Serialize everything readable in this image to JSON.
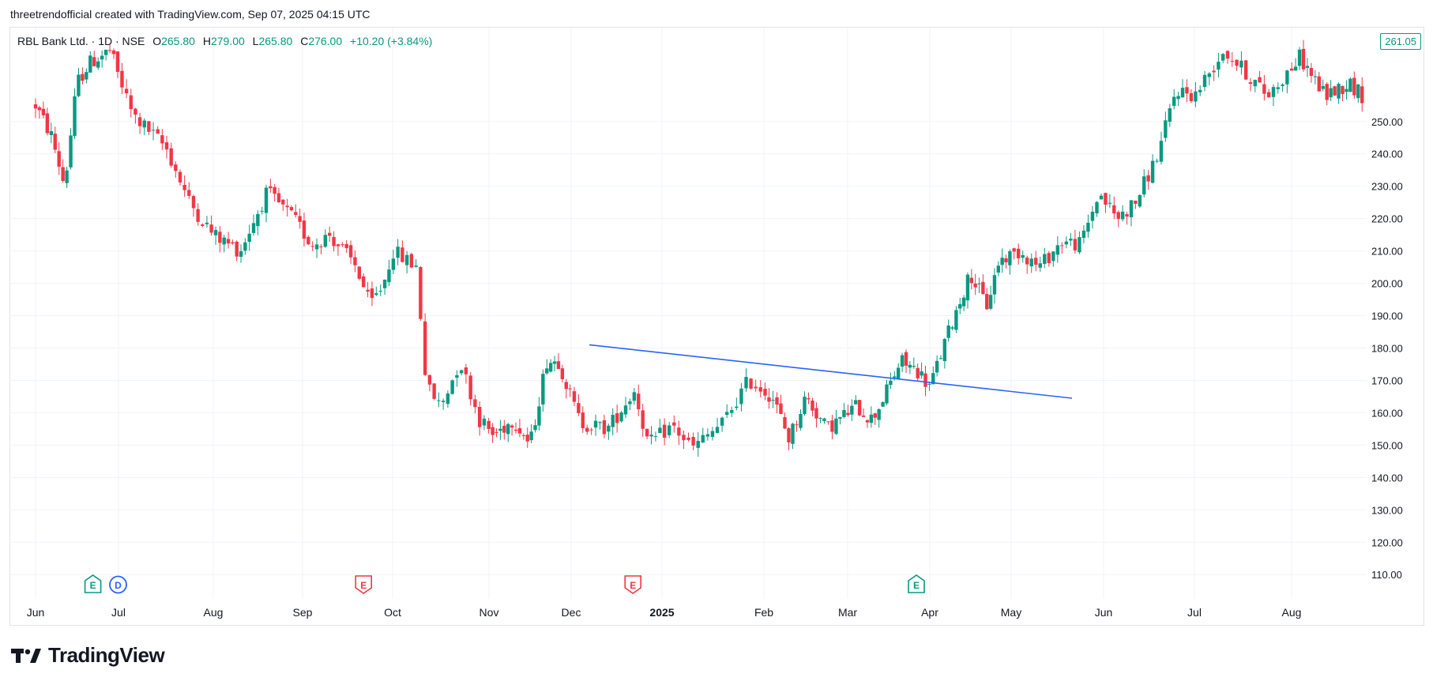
{
  "header": {
    "credit": "threetrendofficial created with TradingView.com, Sep 07, 2025 04:15 UTC"
  },
  "legend": {
    "symbol": "RBL Bank Ltd. · 1D · NSE",
    "open_label": "O",
    "open": "265.80",
    "high_label": "H",
    "high": "279.00",
    "low_label": "L",
    "low": "265.80",
    "close_label": "C",
    "close": "276.00",
    "change": "+10.20 (+3.84%)"
  },
  "last_price_label": "261.05",
  "brand": {
    "name": "TradingView"
  },
  "colors": {
    "up": "#089981",
    "down": "#f23645",
    "trendline": "#2962ff",
    "grid": "#f0f3fa",
    "text": "#131722"
  },
  "events": [
    {
      "month": "Jul",
      "frac": 0.66,
      "letter": "E",
      "kind": "up"
    },
    {
      "month": "Jul",
      "frac": 0.95,
      "letter": "D",
      "kind": "dividend"
    },
    {
      "month": "Oct",
      "frac": 0.62,
      "letter": "E",
      "kind": "down"
    },
    {
      "month": "2025",
      "frac": 0.62,
      "letter": "E",
      "kind": "down"
    },
    {
      "month": "Apr",
      "frac": 0.8,
      "letter": "E",
      "kind": "up"
    }
  ],
  "chart_data": {
    "type": "candlestick",
    "title": "RBL Bank Ltd. · 1D · NSE",
    "ylim": [
      102,
      279
    ],
    "y_ticks": [
      "110.00",
      "120.00",
      "130.00",
      "140.00",
      "150.00",
      "160.00",
      "170.00",
      "180.00",
      "190.00",
      "200.00",
      "210.00",
      "220.00",
      "230.00",
      "240.00",
      "250.00"
    ],
    "x_ticks": [
      "Jun",
      "Jul",
      "Aug",
      "Sep",
      "Oct",
      "Nov",
      "Dec",
      "2025",
      "Feb",
      "Mar",
      "Apr",
      "May",
      "Jun",
      "Jul",
      "Aug"
    ],
    "x_tick_bold": "2025",
    "grid": true,
    "trendline": {
      "from": [
        "Dec",
        181
      ],
      "to": [
        "May",
        164.5
      ],
      "color": "#2962ff"
    },
    "anchors": [
      {
        "t": 0.0,
        "p": 255
      },
      {
        "t": 0.2,
        "p": 245
      },
      {
        "t": 0.35,
        "p": 230
      },
      {
        "t": 0.5,
        "p": 262
      },
      {
        "t": 0.65,
        "p": 268
      },
      {
        "t": 0.9,
        "p": 272
      },
      {
        "t": 1.15,
        "p": 252
      },
      {
        "t": 1.5,
        "p": 242
      },
      {
        "t": 1.75,
        "p": 225
      },
      {
        "t": 2.0,
        "p": 215
      },
      {
        "t": 2.3,
        "p": 210
      },
      {
        "t": 2.6,
        "p": 228
      },
      {
        "t": 2.9,
        "p": 220
      },
      {
        "t": 3.1,
        "p": 212
      },
      {
        "t": 3.3,
        "p": 215
      },
      {
        "t": 3.6,
        "p": 205
      },
      {
        "t": 3.75,
        "p": 193
      },
      {
        "t": 3.9,
        "p": 200
      },
      {
        "t": 4.0,
        "p": 210
      },
      {
        "t": 4.25,
        "p": 205
      },
      {
        "t": 4.35,
        "p": 168
      },
      {
        "t": 4.5,
        "p": 162
      },
      {
        "t": 4.7,
        "p": 176
      },
      {
        "t": 4.9,
        "p": 158
      },
      {
        "t": 5.05,
        "p": 153
      },
      {
        "t": 5.3,
        "p": 158
      },
      {
        "t": 5.5,
        "p": 150
      },
      {
        "t": 5.7,
        "p": 176
      },
      {
        "t": 5.85,
        "p": 176
      },
      {
        "t": 6.1,
        "p": 157
      },
      {
        "t": 6.4,
        "p": 155
      },
      {
        "t": 6.7,
        "p": 167
      },
      {
        "t": 6.85,
        "p": 150
      },
      {
        "t": 7.1,
        "p": 156
      },
      {
        "t": 7.3,
        "p": 149
      },
      {
        "t": 7.6,
        "p": 157
      },
      {
        "t": 7.85,
        "p": 170
      },
      {
        "t": 8.1,
        "p": 165
      },
      {
        "t": 8.3,
        "p": 152
      },
      {
        "t": 8.5,
        "p": 165
      },
      {
        "t": 8.75,
        "p": 155
      },
      {
        "t": 9.1,
        "p": 162
      },
      {
        "t": 9.3,
        "p": 158
      },
      {
        "t": 9.5,
        "p": 168
      },
      {
        "t": 9.65,
        "p": 176
      },
      {
        "t": 9.85,
        "p": 173
      },
      {
        "t": 10.0,
        "p": 168
      },
      {
        "t": 10.3,
        "p": 190
      },
      {
        "t": 10.5,
        "p": 203
      },
      {
        "t": 10.7,
        "p": 193
      },
      {
        "t": 10.85,
        "p": 207
      },
      {
        "t": 11.1,
        "p": 210
      },
      {
        "t": 11.3,
        "p": 205
      },
      {
        "t": 11.55,
        "p": 213
      },
      {
        "t": 11.75,
        "p": 212
      },
      {
        "t": 11.95,
        "p": 228
      },
      {
        "t": 12.15,
        "p": 220
      },
      {
        "t": 12.35,
        "p": 225
      },
      {
        "t": 12.6,
        "p": 240
      },
      {
        "t": 12.8,
        "p": 260
      },
      {
        "t": 13.0,
        "p": 258
      },
      {
        "t": 13.3,
        "p": 272
      },
      {
        "t": 13.5,
        "p": 266
      },
      {
        "t": 13.75,
        "p": 258
      },
      {
        "t": 14.1,
        "p": 270
      },
      {
        "t": 14.4,
        "p": 258
      },
      {
        "t": 14.7,
        "p": 262
      },
      {
        "t": 14.85,
        "p": 258
      }
    ]
  }
}
